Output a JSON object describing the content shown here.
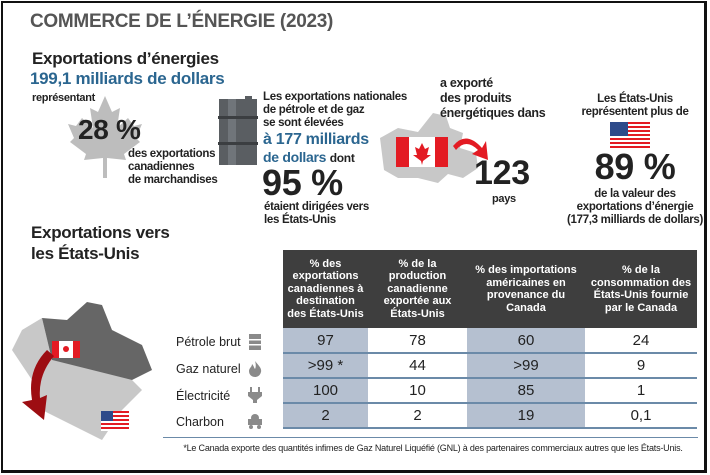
{
  "title": "COMMERCE DE L’ÉNERGIE (2023)",
  "exports": {
    "heading": "Exportations d’énergies",
    "amount": "199,1 milliards de dollars",
    "representing": "représentant",
    "percent": "28 %",
    "desc": [
      "des exportations",
      "canadiennes",
      "de marchandises"
    ]
  },
  "oilgas": {
    "lines": [
      "Les exportations nationales",
      "de pétrole et de gaz",
      "se sont élevées"
    ],
    "amount1": "à 177 milliards",
    "amount2": "de dollars",
    "dont": "dont",
    "percent": "95 %",
    "desc": [
      "étaient dirigées vers",
      "les États-Unis"
    ]
  },
  "countries": {
    "lines": [
      "a exporté",
      "des produits",
      "énergétiques dans"
    ],
    "count": "123",
    "unit": "pays"
  },
  "us": {
    "lines": [
      "Les États-Unis",
      "représentent plus de"
    ],
    "percent": "89 %",
    "desc": [
      "de la valeur des",
      "exportations d’énergie",
      "(177,3 milliards de dollars)"
    ]
  },
  "section2": {
    "heading": [
      "Exportations vers",
      "les États-Unis"
    ]
  },
  "table": {
    "headers": [
      "% des exportations canadiennes à destination des États-Unis",
      "% de la production canadienne exportée aux États-Unis",
      "% des importations américaines en provenance du Canada",
      "% de la consommation des États-Unis fournie par le Canada"
    ],
    "rows": [
      {
        "label": "Pétrole brut",
        "icon": "barrel-icon",
        "values": [
          "97",
          "78",
          "60",
          "24"
        ]
      },
      {
        "label": "Gaz naturel",
        "icon": "flame-icon",
        "values": [
          ">99 *",
          "44",
          ">99",
          "9"
        ]
      },
      {
        "label": "Électricité",
        "icon": "plug-icon",
        "values": [
          "100",
          "10",
          "85",
          "1"
        ]
      },
      {
        "label": "Charbon",
        "icon": "mine-cart-icon",
        "values": [
          "2",
          "2",
          "19",
          "0,1"
        ]
      }
    ]
  },
  "footnote": "*Le Canada exporte des quantités infimes de Gaz Naturel Liquéfié (GNL) à des partenaires commerciaux autres que les États-Unis.",
  "colors": {
    "blue": "#2b6690",
    "header": "#3e3e3e",
    "shade": "#b5c0d0",
    "red": "#e31b23"
  }
}
